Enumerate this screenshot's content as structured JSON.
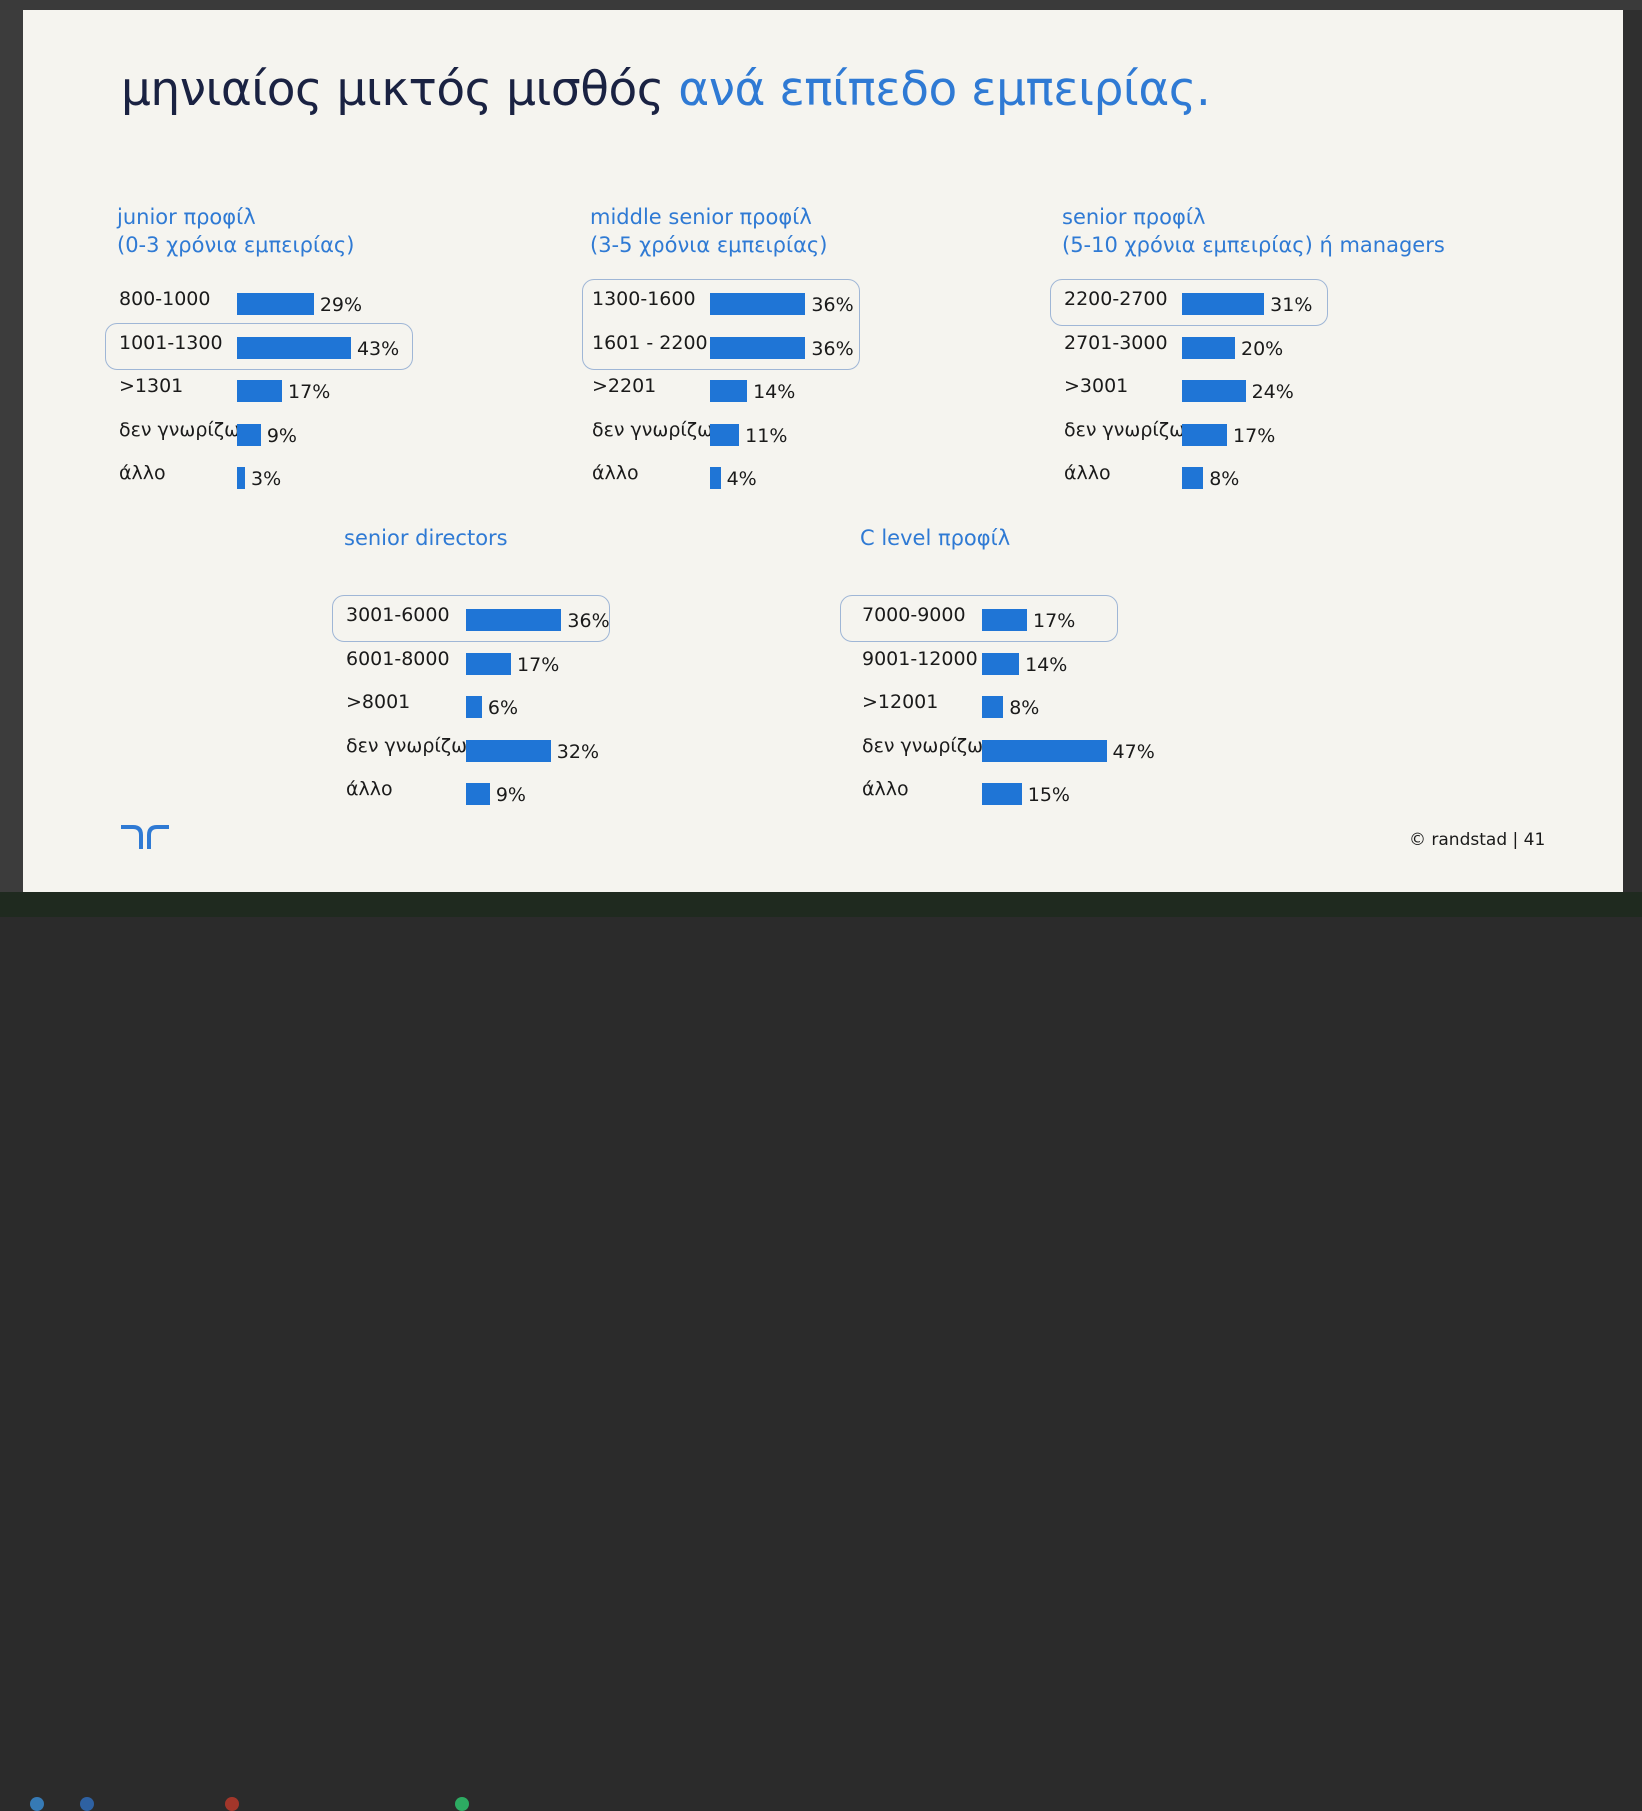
{
  "title": {
    "main": "μηνιαίος μικτός μισθός",
    "accent": "ανά επίπεδο εμπειρίας."
  },
  "colors": {
    "bar": "#1f75d6",
    "accent": "#2f7ad4",
    "title": "#1a2242"
  },
  "chart_data": [
    {
      "type": "bar",
      "orientation": "horizontal",
      "title_line1": "junior προφίλ",
      "title_line2": "(0-3 χρόνια εμπειρίας)",
      "categories": [
        "800-1000",
        "1001-1300",
        ">1301",
        "δεν γνωρίζω",
        "άλλο"
      ],
      "values": [
        29,
        43,
        17,
        9,
        3
      ],
      "labels": [
        "29%",
        "43%",
        "17%",
        "9%",
        "3%"
      ],
      "highlighted": [
        "1001-1300"
      ]
    },
    {
      "type": "bar",
      "orientation": "horizontal",
      "title_line1": "middle senior προφίλ",
      "title_line2": "(3-5 χρόνια εμπειρίας)",
      "categories": [
        "1300-1600",
        "1601 - 2200",
        ">2201",
        "δεν γνωρίζω",
        "άλλο"
      ],
      "values": [
        36,
        36,
        14,
        11,
        4
      ],
      "labels": [
        "36%",
        "36%",
        "14%",
        "11%",
        "4%"
      ],
      "highlighted": [
        "1300-1600",
        "1601 - 2200"
      ]
    },
    {
      "type": "bar",
      "orientation": "horizontal",
      "title_line1": "senior προφίλ",
      "title_line2": "(5-10 χρόνια εμπειρίας) ή managers",
      "categories": [
        "2200-2700",
        "2701-3000",
        ">3001",
        "δεν γνωρίζω",
        "άλλο"
      ],
      "values": [
        31,
        20,
        24,
        17,
        8
      ],
      "labels": [
        "31%",
        "20%",
        "24%",
        "17%",
        "8%"
      ],
      "highlighted": [
        "2200-2700"
      ]
    },
    {
      "type": "bar",
      "orientation": "horizontal",
      "title_line1": "senior directors",
      "title_line2": "",
      "categories": [
        "3001-6000",
        "6001-8000",
        ">8001",
        "δεν γνωρίζω",
        "άλλο"
      ],
      "values": [
        36,
        17,
        6,
        32,
        9
      ],
      "labels": [
        "36%",
        "17%",
        "6%",
        "32%",
        "9%"
      ],
      "highlighted": [
        "3001-6000"
      ]
    },
    {
      "type": "bar",
      "orientation": "horizontal",
      "title_line1": "C level προφίλ",
      "title_line2": "",
      "categories": [
        "7000-9000",
        "9001-12000",
        ">12001",
        "δεν γνωρίζω",
        "άλλο"
      ],
      "values": [
        17,
        14,
        8,
        47,
        15
      ],
      "labels": [
        "17%",
        "14%",
        "8%",
        "47%",
        "15%"
      ],
      "highlighted": [
        "7000-9000"
      ]
    }
  ],
  "footer": {
    "copyright": "© randstad",
    "separator": "|",
    "page": "41"
  },
  "logo": {
    "icon": "randstad-logo-icon"
  }
}
